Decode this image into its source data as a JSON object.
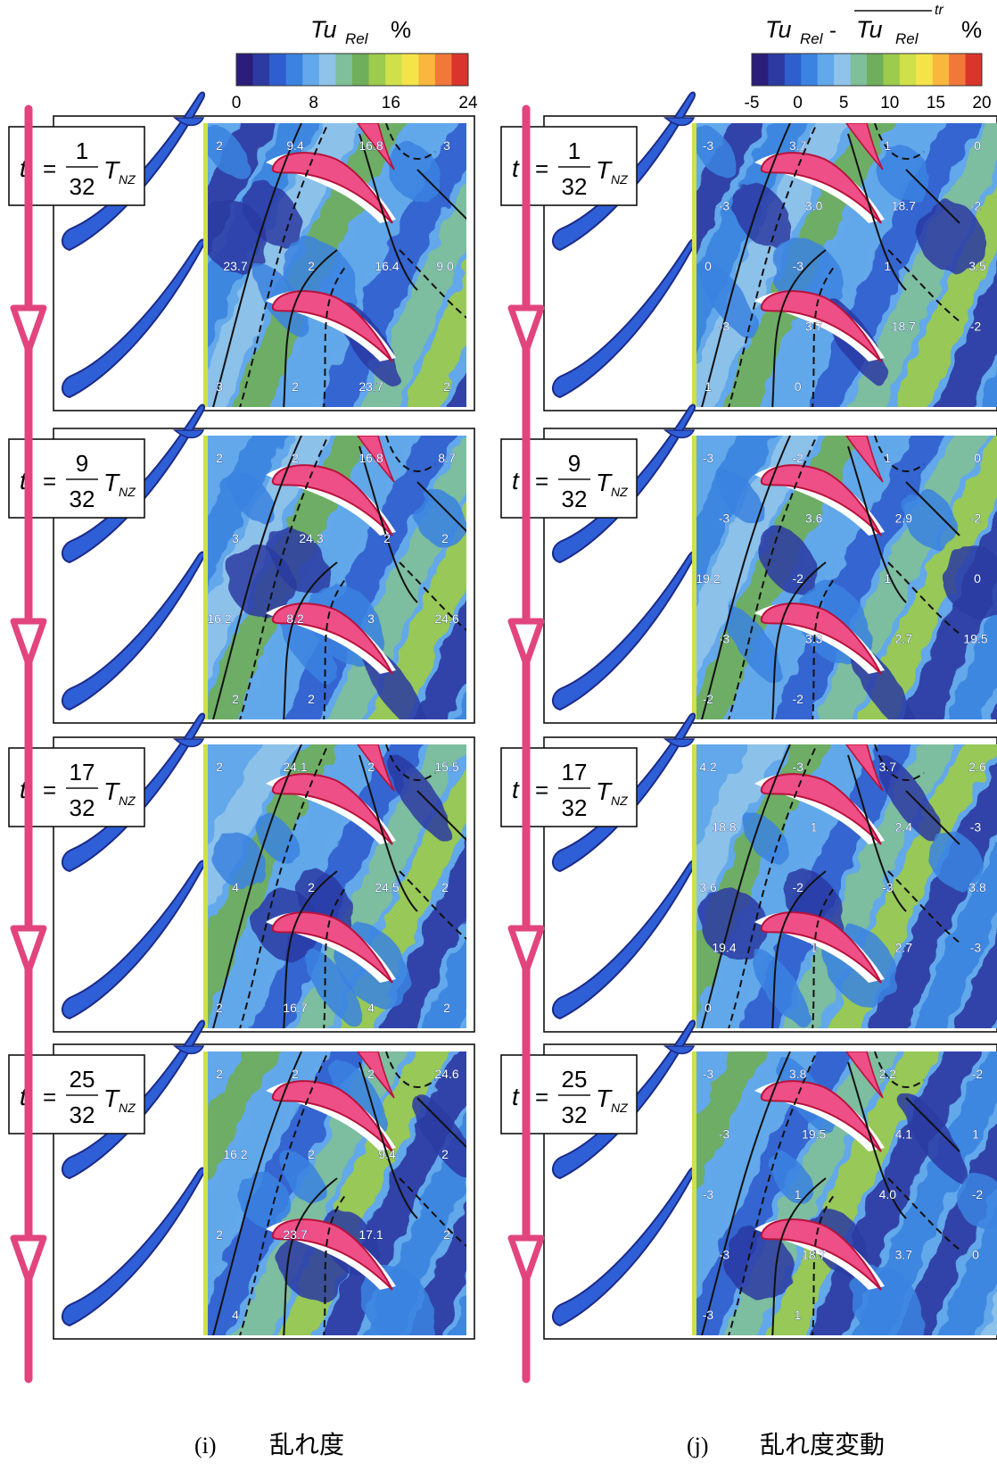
{
  "colorbars": [
    {
      "id": "i",
      "title_main": "Tu",
      "title_sub": "Rel",
      "title_unit": "%",
      "ticks": [
        "0",
        "8",
        "16",
        "24"
      ],
      "range": [
        0,
        24
      ]
    },
    {
      "id": "j",
      "title_main": "Tu",
      "title_sub": "Rel",
      "title_mid": " - ",
      "title_main2": "Tu",
      "title_sub2": "Rel",
      "title_sup": "tr",
      "title_unit": "%",
      "ticks": [
        "-5",
        "0",
        "5",
        "10",
        "15",
        "20"
      ],
      "range": [
        -5,
        20
      ]
    }
  ],
  "colors": {
    "arrow": "#e2457e",
    "stator_blade": "#2f5fd6",
    "stator_edge": "#1b2a8a",
    "rotor_blade": "#ee4f86",
    "rotor_edge": "#b8123c",
    "colormap": [
      "#2a1e7a",
      "#2c3aa2",
      "#2f5fcf",
      "#3b83e0",
      "#62a8ea",
      "#8fc3ea",
      "#7fbf9a",
      "#6fae5a",
      "#9ccb4d",
      "#cfe04a",
      "#f4e44a",
      "#f9b83d",
      "#f2783a",
      "#d9352c"
    ]
  },
  "time_labels": [
    {
      "t": "t",
      "eq": "=",
      "num": "1",
      "den": "32",
      "T": "T",
      "Tsub": "NZ"
    },
    {
      "t": "t",
      "eq": "=",
      "num": "9",
      "den": "32",
      "T": "T",
      "Tsub": "NZ"
    },
    {
      "t": "t",
      "eq": "=",
      "num": "17",
      "den": "32",
      "T": "T",
      "Tsub": "NZ"
    },
    {
      "t": "t",
      "eq": "=",
      "num": "25",
      "den": "32",
      "T": "T",
      "Tsub": "NZ"
    }
  ],
  "panels_i": [
    {
      "labels": [
        "2",
        "9.4",
        "16.8",
        "3",
        "23.7",
        "2",
        "16.4",
        "9.0",
        "3",
        "2",
        "23.7",
        "2"
      ]
    },
    {
      "labels": [
        "2",
        "2",
        "16.8",
        "8.7",
        "3",
        "24.3",
        "2",
        "2",
        "16.2",
        "8.2",
        "3",
        "24.6",
        "2",
        "2"
      ]
    },
    {
      "labels": [
        "2",
        "24.1",
        "2",
        "15.5",
        "4",
        "2",
        "24.5",
        "2",
        "2",
        "16.7",
        "4",
        "2"
      ]
    },
    {
      "labels": [
        "2",
        "2",
        "2",
        "24.6",
        "16.2",
        "2",
        "9.4",
        "2",
        "2",
        "23.7",
        "17.1",
        "2",
        "4"
      ]
    }
  ],
  "panels_j": [
    {
      "labels": [
        "-3",
        "3.7",
        "1",
        "0",
        "-3",
        "3.0",
        "18.7",
        "-2",
        "0",
        "-3",
        "1",
        "3.5",
        "-3",
        "3.7",
        "18.7",
        "-2",
        "1",
        "0"
      ]
    },
    {
      "labels": [
        "-3",
        "-2",
        "1",
        "0",
        "-3",
        "3.6",
        "2.9",
        "-2",
        "19.2",
        "-2",
        "1",
        "0",
        "-3",
        "3.3",
        "2.7",
        "19.5",
        "-2",
        "-2"
      ]
    },
    {
      "labels": [
        "4.2",
        "-3",
        "3.7",
        "2.6",
        "18.8",
        "1",
        "2.4",
        "-3",
        "3.6",
        "-2",
        "-3",
        "3.8",
        "19.4",
        "1",
        "2.7",
        "-3",
        "0"
      ]
    },
    {
      "labels": [
        "-3",
        "3.8",
        "2.2",
        "-2",
        "-3",
        "19.5",
        "4.1",
        "1",
        "-3",
        "1",
        "4.0",
        "-2",
        "-3",
        "18.7",
        "3.7",
        "0",
        "-3",
        "1"
      ]
    }
  ],
  "captions": [
    {
      "label": "(i)",
      "text": "乱れ度"
    },
    {
      "label": "(j)",
      "text": "乱れ度変動"
    }
  ]
}
